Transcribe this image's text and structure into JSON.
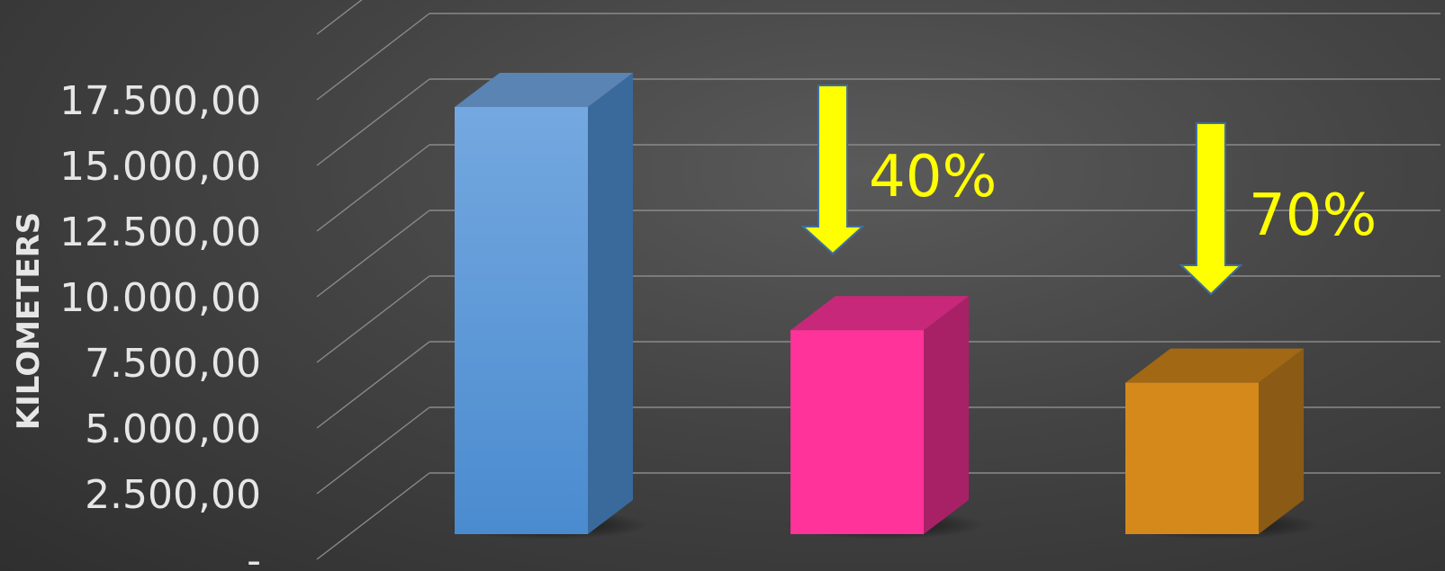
{
  "chart_data": {
    "type": "bar",
    "style": "3d-column",
    "categories": [
      "",
      "",
      ""
    ],
    "values": [
      17500,
      9000,
      7000
    ],
    "colors": [
      "#5b9bd5",
      "#ff3399",
      "#d6891b"
    ],
    "title": "",
    "xlabel": "",
    "ylabel": "KILOMETERS",
    "ylim": [
      0,
      20000
    ],
    "yticks": [
      0,
      2500,
      5000,
      7500,
      10000,
      12500,
      15000,
      17500
    ],
    "ytick_labels": [
      "-",
      "2.500,00",
      "5.000,00",
      "7.500,00",
      "10.000,00",
      "12.500,00",
      "15.000,00",
      "17.500,00"
    ],
    "grid": true,
    "legend": "none",
    "annotations": [
      {
        "text": "40%",
        "target_bar": 1,
        "arrow": "down",
        "color": "#ffff00"
      },
      {
        "text": "70%",
        "target_bar": 2,
        "arrow": "down",
        "color": "#ffff00"
      }
    ]
  }
}
